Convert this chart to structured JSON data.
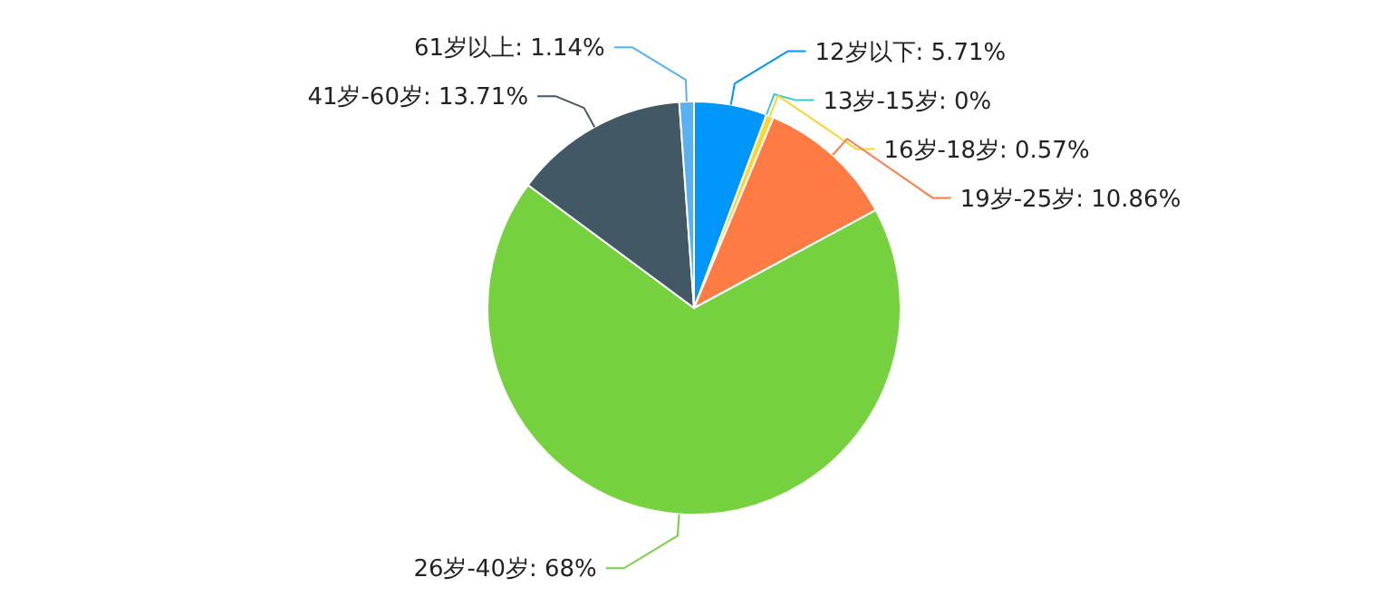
{
  "chart_data": {
    "type": "pie",
    "categories": [
      "12岁以下",
      "13岁-15岁",
      "16岁-18岁",
      "19岁-25岁",
      "26岁-40岁",
      "41岁-60岁",
      "61岁以上"
    ],
    "values": [
      5.71,
      0,
      0.57,
      10.86,
      68,
      13.71,
      1.14
    ],
    "value_labels": [
      "5.71%",
      "0%",
      "0.57%",
      "10.86%",
      "68%",
      "13.71%",
      "1.14%"
    ],
    "colors": [
      "#0096fa",
      "#36cbcb",
      "#fbd437",
      "#ff7b44",
      "#75d23e",
      "#435865",
      "#5ab1ef"
    ]
  }
}
